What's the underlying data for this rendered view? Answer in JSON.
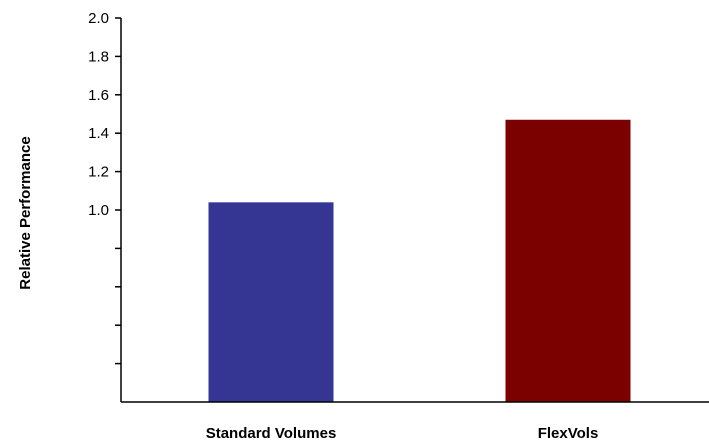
{
  "chart_data": {
    "type": "bar",
    "ylabel": "Relative Performance",
    "xlabel": "",
    "categories": [
      "Standard Volumes",
      "FlexVols"
    ],
    "values": [
      1.04,
      1.47
    ],
    "colors": [
      "#353593",
      "#7b0000"
    ],
    "ylim": [
      0,
      2.0
    ],
    "ytick_values": [
      0.2,
      0.4,
      0.6,
      0.8,
      1.0,
      1.2,
      1.4,
      1.6,
      1.8,
      2.0
    ],
    "ytick_labels": [
      "",
      "",
      "",
      "",
      "1.0",
      "1.2",
      "1.4",
      "1.6",
      "1.8",
      "2.0"
    ],
    "grid": false,
    "legend": "none"
  }
}
